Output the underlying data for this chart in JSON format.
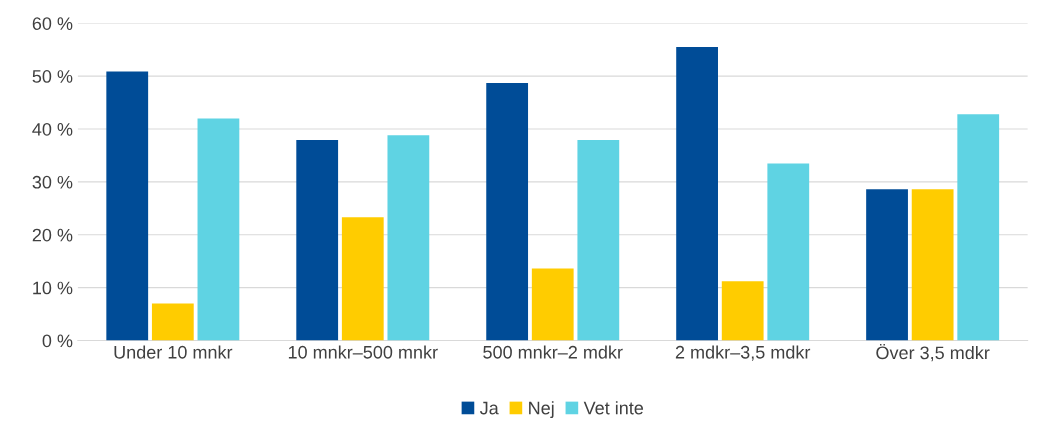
{
  "chart_data": {
    "type": "bar",
    "categories": [
      "Under 10 mnkr",
      "10 mnkr–500 mnkr",
      "500 mnkr–2 mdkr",
      "2 mdkr–3,5 mdkr",
      "Över 3,5 mdkr"
    ],
    "series": [
      {
        "name": "Ja",
        "color": "#004c97",
        "values": [
          50.9,
          37.9,
          48.7,
          55.5,
          28.6
        ]
      },
      {
        "name": "Nej",
        "color": "#ffcc00",
        "values": [
          7.0,
          23.3,
          13.6,
          11.2,
          28.6
        ]
      },
      {
        "name": "Vet inte",
        "color": "#5fd3e3",
        "values": [
          42.0,
          38.8,
          37.9,
          33.5,
          42.8
        ]
      }
    ],
    "ylim": [
      0,
      60
    ],
    "yticks": [
      {
        "value": 0,
        "label": "0 %"
      },
      {
        "value": 10,
        "label": "10 %"
      },
      {
        "value": 20,
        "label": "20 %"
      },
      {
        "value": 30,
        "label": "30 %"
      },
      {
        "value": 40,
        "label": "40 %"
      },
      {
        "value": 50,
        "label": "50 %"
      },
      {
        "value": 60,
        "label": "60 %"
      }
    ],
    "grid": "y",
    "legend": "bottom"
  }
}
